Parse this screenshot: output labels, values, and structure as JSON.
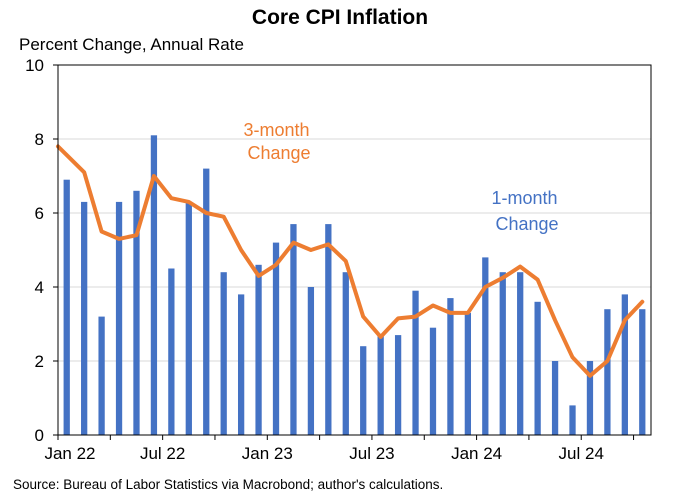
{
  "chart_data": {
    "type": "bar+line",
    "title": "Core CPI Inflation",
    "subtitle": "Percent Change, Annual Rate",
    "source": "Source: Bureau of Labor Statistics via Macrobond; author's calculations.",
    "ylim": [
      0,
      10
    ],
    "yticks": [
      0,
      2,
      4,
      6,
      8,
      10
    ],
    "x_tick_labels": [
      {
        "label": "Jan 22",
        "index": 0
      },
      {
        "label": "Jul 22",
        "index": 6
      },
      {
        "label": "Jan 23",
        "index": 12
      },
      {
        "label": "Jul 23",
        "index": 18
      },
      {
        "label": "Jan 24",
        "index": 24
      },
      {
        "label": "Jul 24",
        "index": 30
      }
    ],
    "months": [
      "Jan 2022",
      "Feb 2022",
      "Mar 2022",
      "Apr 2022",
      "May 2022",
      "Jun 2022",
      "Jul 2022",
      "Aug 2022",
      "Sep 2022",
      "Oct 2022",
      "Nov 2022",
      "Dec 2022",
      "Jan 2023",
      "Feb 2023",
      "Mar 2023",
      "Apr 2023",
      "May 2023",
      "Jun 2023",
      "Jul 2023",
      "Aug 2023",
      "Sep 2023",
      "Oct 2023",
      "Nov 2023",
      "Dec 2023",
      "Jan 2024",
      "Feb 2024",
      "Mar 2024",
      "Apr 2024",
      "May 2024",
      "Jun 2024",
      "Jul 2024",
      "Aug 2024",
      "Sep 2024",
      "Oct 2024"
    ],
    "grid": "horizontal",
    "series": [
      {
        "name": "1-month Change",
        "type": "bar",
        "color": "#4472C4",
        "values": [
          6.9,
          6.3,
          3.2,
          6.3,
          6.6,
          8.1,
          4.5,
          6.3,
          7.2,
          4.4,
          3.8,
          4.6,
          5.2,
          5.7,
          4.0,
          5.7,
          4.4,
          2.4,
          2.7,
          2.7,
          3.9,
          2.9,
          3.7,
          3.3,
          4.8,
          4.4,
          4.4,
          3.6,
          2.0,
          0.8,
          2.0,
          3.4,
          3.8,
          3.4
        ]
      },
      {
        "name": "3-month Change",
        "type": "line",
        "color": "#ED7D31",
        "values": [
          7.8,
          7.1,
          5.5,
          5.3,
          5.4,
          7.0,
          6.4,
          6.3,
          6.0,
          5.9,
          5.0,
          4.3,
          4.6,
          5.2,
          5.0,
          5.15,
          4.7,
          3.2,
          2.65,
          3.15,
          3.2,
          3.5,
          3.3,
          3.3,
          4.0,
          4.25,
          4.55,
          4.2,
          3.1,
          2.1,
          1.6,
          2.0,
          3.1,
          3.6
        ]
      }
    ],
    "annotations": [
      {
        "text_lines": [
          "3-month",
          "Change"
        ],
        "series": "3-month Change"
      },
      {
        "text_lines": [
          "1-month",
          "Change"
        ],
        "series": "1-month Change"
      }
    ]
  }
}
